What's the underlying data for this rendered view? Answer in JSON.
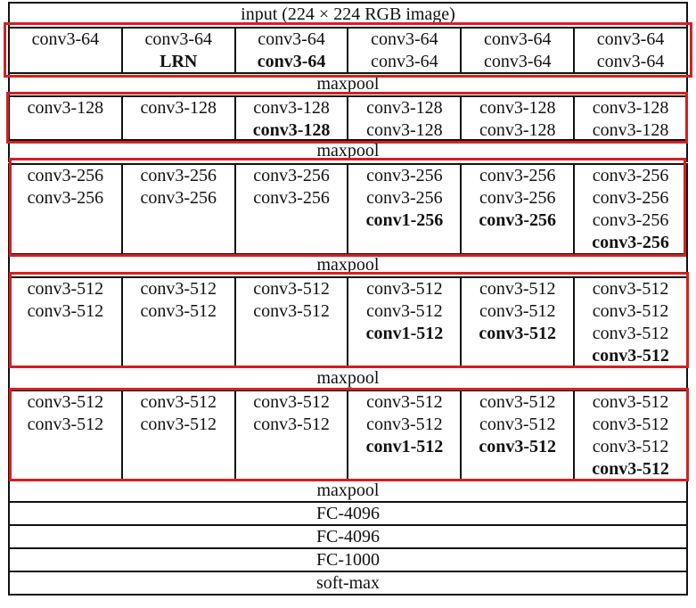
{
  "input_label": "input (224 × 224 RGB image)",
  "maxpool_label": "maxpool",
  "tail": [
    "FC-4096",
    "FC-4096",
    "FC-1000",
    "soft-max"
  ],
  "highlight_color": "#d42020",
  "blocks": [
    {
      "columns": [
        [
          {
            "t": "conv3-64",
            "b": false
          }
        ],
        [
          {
            "t": "conv3-64",
            "b": false
          },
          {
            "t": "LRN",
            "b": true
          }
        ],
        [
          {
            "t": "conv3-64",
            "b": false
          },
          {
            "t": "conv3-64",
            "b": true
          }
        ],
        [
          {
            "t": "conv3-64",
            "b": false
          },
          {
            "t": "conv3-64",
            "b": false
          }
        ],
        [
          {
            "t": "conv3-64",
            "b": false
          },
          {
            "t": "conv3-64",
            "b": false
          }
        ],
        [
          {
            "t": "conv3-64",
            "b": false
          },
          {
            "t": "conv3-64",
            "b": false
          }
        ]
      ]
    },
    {
      "columns": [
        [
          {
            "t": "conv3-128",
            "b": false
          }
        ],
        [
          {
            "t": "conv3-128",
            "b": false
          }
        ],
        [
          {
            "t": "conv3-128",
            "b": false
          },
          {
            "t": "conv3-128",
            "b": true
          }
        ],
        [
          {
            "t": "conv3-128",
            "b": false
          },
          {
            "t": "conv3-128",
            "b": false
          }
        ],
        [
          {
            "t": "conv3-128",
            "b": false
          },
          {
            "t": "conv3-128",
            "b": false
          }
        ],
        [
          {
            "t": "conv3-128",
            "b": false
          },
          {
            "t": "conv3-128",
            "b": false
          }
        ]
      ]
    },
    {
      "columns": [
        [
          {
            "t": "conv3-256",
            "b": false
          },
          {
            "t": "conv3-256",
            "b": false
          }
        ],
        [
          {
            "t": "conv3-256",
            "b": false
          },
          {
            "t": "conv3-256",
            "b": false
          }
        ],
        [
          {
            "t": "conv3-256",
            "b": false
          },
          {
            "t": "conv3-256",
            "b": false
          }
        ],
        [
          {
            "t": "conv3-256",
            "b": false
          },
          {
            "t": "conv3-256",
            "b": false
          },
          {
            "t": "conv1-256",
            "b": true
          }
        ],
        [
          {
            "t": "conv3-256",
            "b": false
          },
          {
            "t": "conv3-256",
            "b": false
          },
          {
            "t": "conv3-256",
            "b": true
          }
        ],
        [
          {
            "t": "conv3-256",
            "b": false
          },
          {
            "t": "conv3-256",
            "b": false
          },
          {
            "t": "conv3-256",
            "b": false
          },
          {
            "t": "conv3-256",
            "b": true
          }
        ]
      ]
    },
    {
      "columns": [
        [
          {
            "t": "conv3-512",
            "b": false
          },
          {
            "t": "conv3-512",
            "b": false
          }
        ],
        [
          {
            "t": "conv3-512",
            "b": false
          },
          {
            "t": "conv3-512",
            "b": false
          }
        ],
        [
          {
            "t": "conv3-512",
            "b": false
          },
          {
            "t": "conv3-512",
            "b": false
          }
        ],
        [
          {
            "t": "conv3-512",
            "b": false
          },
          {
            "t": "conv3-512",
            "b": false
          },
          {
            "t": "conv1-512",
            "b": true
          }
        ],
        [
          {
            "t": "conv3-512",
            "b": false
          },
          {
            "t": "conv3-512",
            "b": false
          },
          {
            "t": "conv3-512",
            "b": true
          }
        ],
        [
          {
            "t": "conv3-512",
            "b": false
          },
          {
            "t": "conv3-512",
            "b": false
          },
          {
            "t": "conv3-512",
            "b": false
          },
          {
            "t": "conv3-512",
            "b": true
          }
        ]
      ]
    },
    {
      "columns": [
        [
          {
            "t": "conv3-512",
            "b": false
          },
          {
            "t": "conv3-512",
            "b": false
          }
        ],
        [
          {
            "t": "conv3-512",
            "b": false
          },
          {
            "t": "conv3-512",
            "b": false
          }
        ],
        [
          {
            "t": "conv3-512",
            "b": false
          },
          {
            "t": "conv3-512",
            "b": false
          }
        ],
        [
          {
            "t": "conv3-512",
            "b": false
          },
          {
            "t": "conv3-512",
            "b": false
          },
          {
            "t": "conv1-512",
            "b": true
          }
        ],
        [
          {
            "t": "conv3-512",
            "b": false
          },
          {
            "t": "conv3-512",
            "b": false
          },
          {
            "t": "conv3-512",
            "b": true
          }
        ],
        [
          {
            "t": "conv3-512",
            "b": false
          },
          {
            "t": "conv3-512",
            "b": false
          },
          {
            "t": "conv3-512",
            "b": false
          },
          {
            "t": "conv3-512",
            "b": true
          }
        ]
      ]
    }
  ]
}
